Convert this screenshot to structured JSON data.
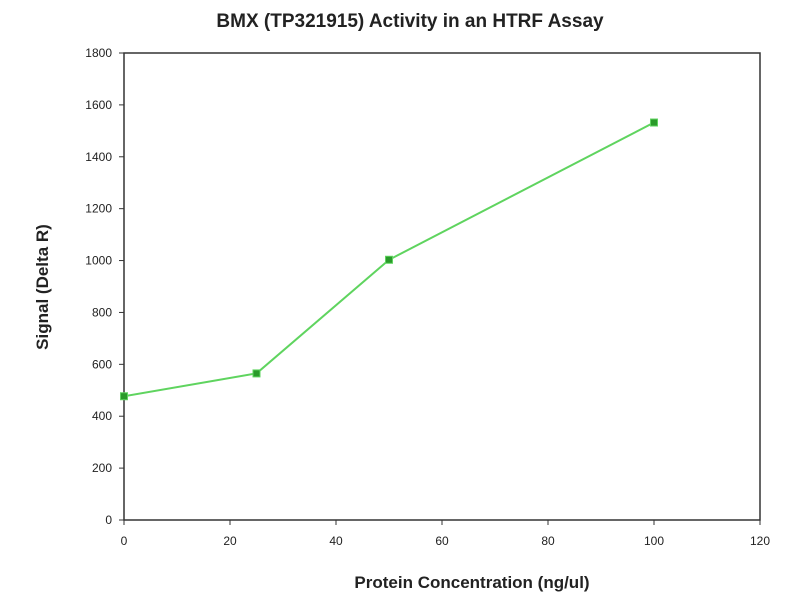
{
  "chart_data": {
    "type": "line",
    "title": "BMX (TP321915) Activity in an HTRF Assay",
    "xlabel": "Protein Concentration (ng/ul)",
    "ylabel": "Signal (Delta R)",
    "xlim": [
      0,
      120
    ],
    "ylim": [
      0,
      1800
    ],
    "xticks": [
      0,
      20,
      40,
      60,
      80,
      100,
      120
    ],
    "yticks": [
      0,
      200,
      400,
      600,
      800,
      1000,
      1200,
      1400,
      1600,
      1800
    ],
    "grid": false,
    "series": [
      {
        "name": "BMX",
        "color": "#5fd45f",
        "marker_color": "#2a9a2a",
        "x": [
          0,
          25,
          50,
          100
        ],
        "y": [
          477,
          565,
          1003,
          1532
        ]
      }
    ]
  }
}
